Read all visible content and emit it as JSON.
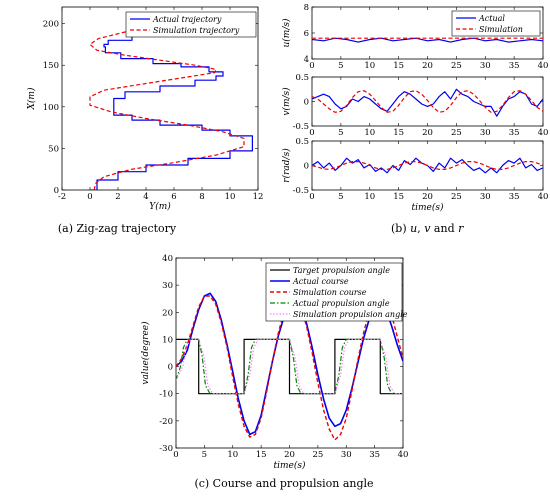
{
  "captions": {
    "a": "(a)  Zig-zag trajectory",
    "b_prefix": "(b)  ",
    "b_u": "u",
    "b_sep1": ", ",
    "b_v": "v",
    "b_and": " and ",
    "b_r": "r",
    "c": "(c)  Course and propulsion angle"
  },
  "colors": {
    "actual": "#0000ee",
    "simulation": "#ee0000",
    "target": "#000000",
    "actual_prop": "#008800",
    "sim_prop": "#ff77ff"
  },
  "chart_data": [
    {
      "id": "a",
      "type": "line",
      "xlabel": "Y(m)",
      "ylabel": "X(m)",
      "xlim": [
        -2,
        12
      ],
      "ylim": [
        0,
        220
      ],
      "xticks": [
        "-2",
        "0",
        "2",
        "4",
        "6",
        "8",
        "10",
        "12"
      ],
      "yticks": [
        "0",
        "50",
        "100",
        "150",
        "200"
      ],
      "legend": "top-right",
      "series": [
        {
          "name": "Actual trajectory",
          "style": "solid",
          "color": "#0000ee",
          "step": true,
          "x": [
            0,
            0.5,
            2,
            4,
            7,
            10,
            11.6,
            11.6,
            10,
            8,
            5,
            3,
            1.7,
            1.7,
            2.5,
            5,
            7.5,
            9,
            9.5,
            8.5,
            6.5,
            4.5,
            2.2,
            1.1,
            1,
            1.3,
            3,
            5,
            8,
            8.3
          ],
          "y": [
            0,
            12,
            22,
            30,
            38,
            47,
            55,
            65,
            72,
            78,
            84,
            90,
            98,
            110,
            118,
            125,
            132,
            137,
            142,
            148,
            152,
            158,
            165,
            172,
            175,
            180,
            190,
            198,
            205,
            208
          ]
        },
        {
          "name": "Simulation trajectory",
          "style": "dashed",
          "color": "#ee0000",
          "x": [
            0.3,
            0.4,
            1,
            3,
            6,
            9,
            11,
            11,
            9.5,
            7,
            4,
            1.5,
            0,
            0,
            1,
            4,
            7,
            8.9,
            9,
            7.5,
            5,
            2.5,
            0.5,
            0,
            0.6,
            2.5,
            5,
            7.5,
            8.9
          ],
          "y": [
            0,
            8,
            16,
            25,
            33,
            42,
            52,
            62,
            70,
            78,
            86,
            94,
            102,
            112,
            120,
            128,
            136,
            141,
            145,
            150,
            156,
            162,
            168,
            175,
            182,
            190,
            196,
            202,
            207
          ]
        }
      ]
    },
    {
      "id": "b1",
      "type": "line",
      "ylabel": "u(m/s)",
      "xlim": [
        0,
        40
      ],
      "ylim": [
        4,
        8
      ],
      "xticks": [
        "0",
        "5",
        "10",
        "15",
        "20",
        "25",
        "30",
        "35",
        "40"
      ],
      "yticks": [
        "4",
        "6",
        "8"
      ],
      "legend": "top-right",
      "series": [
        {
          "name": "Actual",
          "style": "solid",
          "color": "#0000ee",
          "x": [
            0,
            2,
            4,
            6,
            8,
            10,
            12,
            14,
            16,
            18,
            20,
            22,
            24,
            26,
            28,
            30,
            32,
            34,
            36,
            38,
            40
          ],
          "y": [
            5.5,
            5.4,
            5.6,
            5.5,
            5.3,
            5.5,
            5.6,
            5.4,
            5.5,
            5.6,
            5.4,
            5.5,
            5.3,
            5.5,
            5.6,
            5.4,
            5.5,
            5.3,
            5.4,
            5.5,
            5.4
          ]
        },
        {
          "name": "Simulation",
          "style": "dashed",
          "color": "#ee0000",
          "x": [
            0,
            5,
            10,
            15,
            20,
            25,
            30,
            35,
            40
          ],
          "y": [
            5.6,
            5.6,
            5.6,
            5.6,
            5.6,
            5.6,
            5.6,
            5.6,
            5.6
          ]
        }
      ]
    },
    {
      "id": "b2",
      "type": "line",
      "ylabel": "v(m/s)",
      "xlim": [
        0,
        40
      ],
      "ylim": [
        -0.5,
        0.5
      ],
      "xticks": [
        "0",
        "5",
        "10",
        "15",
        "20",
        "25",
        "30",
        "35",
        "40"
      ],
      "yticks": [
        "-0.5",
        "0",
        "0.5"
      ],
      "series": [
        {
          "name": "Actual",
          "style": "solid",
          "color": "#0000ee",
          "x": [
            0,
            1,
            2,
            3,
            4,
            5,
            6,
            7,
            8,
            9,
            10,
            11,
            12,
            13,
            14,
            15,
            16,
            17,
            18,
            19,
            20,
            21,
            22,
            23,
            24,
            25,
            26,
            27,
            28,
            29,
            30,
            31,
            32,
            33,
            34,
            35,
            36,
            37,
            38,
            39,
            40
          ],
          "y": [
            0.05,
            0.1,
            0.15,
            0.1,
            -0.05,
            -0.15,
            -0.1,
            0.05,
            0.0,
            0.1,
            0.05,
            -0.05,
            -0.15,
            -0.2,
            -0.05,
            0.1,
            0.2,
            0.15,
            0.05,
            -0.05,
            -0.1,
            -0.05,
            0.1,
            0.2,
            0.05,
            0.25,
            0.15,
            0.1,
            0.0,
            -0.05,
            -0.1,
            -0.1,
            -0.3,
            -0.1,
            0.05,
            0.1,
            0.2,
            0.15,
            -0.05,
            -0.1,
            0.05
          ]
        },
        {
          "name": "Simulation",
          "style": "dashed",
          "color": "#ee0000",
          "x": [
            0,
            1,
            2,
            3,
            4,
            5,
            6,
            7,
            8,
            9,
            10,
            11,
            12,
            13,
            14,
            15,
            16,
            17,
            18,
            19,
            20,
            21,
            22,
            23,
            24,
            25,
            26,
            27,
            28,
            29,
            30,
            31,
            32,
            33,
            34,
            35,
            36,
            37,
            38,
            39,
            40
          ],
          "y": [
            0.1,
            0.05,
            -0.05,
            -0.15,
            -0.22,
            -0.2,
            -0.08,
            0.08,
            0.2,
            0.22,
            0.15,
            0.02,
            -0.12,
            -0.22,
            -0.2,
            -0.08,
            0.08,
            0.2,
            0.22,
            0.15,
            0.02,
            -0.12,
            -0.22,
            -0.2,
            -0.08,
            0.08,
            0.2,
            0.22,
            0.15,
            0.02,
            -0.12,
            -0.22,
            -0.2,
            -0.08,
            0.08,
            0.2,
            0.22,
            0.15,
            0.02,
            -0.12,
            -0.2
          ]
        }
      ]
    },
    {
      "id": "b3",
      "type": "line",
      "xlabel": "time(s)",
      "ylabel": "r(rad/s)",
      "xlim": [
        0,
        40
      ],
      "ylim": [
        -0.5,
        0.5
      ],
      "xticks": [
        "0",
        "5",
        "10",
        "15",
        "20",
        "25",
        "30",
        "35",
        "40"
      ],
      "yticks": [
        "-0.5",
        "0",
        "0.5"
      ],
      "series": [
        {
          "name": "Actual",
          "style": "solid",
          "color": "#0000ee",
          "x": [
            0,
            1,
            2,
            3,
            4,
            5,
            6,
            7,
            8,
            9,
            10,
            11,
            12,
            13,
            14,
            15,
            16,
            17,
            18,
            19,
            20,
            21,
            22,
            23,
            24,
            25,
            26,
            27,
            28,
            29,
            30,
            31,
            32,
            33,
            34,
            35,
            36,
            37,
            38,
            39,
            40
          ],
          "y": [
            0.0,
            0.08,
            -0.05,
            0.05,
            -0.1,
            0.0,
            0.15,
            0.05,
            0.12,
            -0.05,
            0.02,
            -0.12,
            -0.05,
            -0.15,
            0.0,
            -0.1,
            0.1,
            0.02,
            0.15,
            0.05,
            0.0,
            -0.12,
            0.05,
            -0.05,
            0.15,
            0.05,
            0.12,
            0.0,
            -0.1,
            -0.05,
            -0.15,
            -0.05,
            -0.15,
            0.0,
            0.1,
            0.05,
            0.15,
            -0.05,
            0.02,
            -0.1,
            -0.05
          ]
        },
        {
          "name": "Simulation",
          "style": "dashed",
          "color": "#ee0000",
          "x": [
            0,
            1,
            2,
            3,
            4,
            5,
            6,
            7,
            8,
            9,
            10,
            11,
            12,
            13,
            14,
            15,
            16,
            17,
            18,
            19,
            20,
            21,
            22,
            23,
            24,
            25,
            26,
            27,
            28,
            29,
            30,
            31,
            32,
            33,
            34,
            35,
            36,
            37,
            38,
            39,
            40
          ],
          "y": [
            0.0,
            -0.03,
            -0.07,
            -0.08,
            -0.05,
            0.0,
            0.05,
            0.08,
            0.08,
            0.05,
            0.0,
            -0.05,
            -0.08,
            -0.08,
            -0.05,
            0.0,
            0.05,
            0.08,
            0.08,
            0.05,
            0.0,
            -0.05,
            -0.08,
            -0.08,
            -0.05,
            0.0,
            0.05,
            0.08,
            0.08,
            0.05,
            0.0,
            -0.05,
            -0.08,
            -0.08,
            -0.05,
            0.0,
            0.05,
            0.08,
            0.08,
            0.05,
            0.0
          ]
        }
      ]
    },
    {
      "id": "c",
      "type": "line",
      "xlabel": "time(s)",
      "ylabel": "value(degree)",
      "xlim": [
        0,
        40
      ],
      "ylim": [
        -30,
        40
      ],
      "xticks": [
        "0",
        "5",
        "10",
        "15",
        "20",
        "25",
        "30",
        "35",
        "40"
      ],
      "yticks": [
        "-30",
        "-20",
        "-10",
        "0",
        "10",
        "20",
        "30",
        "40"
      ],
      "legend": "top-right",
      "series": [
        {
          "name": "Target propulsion angle",
          "style": "solid",
          "color": "#000000",
          "width": 1.2,
          "x": [
            0,
            4,
            4,
            12,
            12,
            20,
            20,
            28,
            28,
            36,
            36,
            40
          ],
          "y": [
            10,
            10,
            -10,
            -10,
            10,
            10,
            -10,
            -10,
            10,
            10,
            -10,
            -10
          ]
        },
        {
          "name": "Actual course",
          "style": "solid",
          "color": "#0000ee",
          "width": 1.6,
          "x": [
            0,
            1,
            2,
            3,
            4,
            5,
            6,
            7,
            8,
            9,
            10,
            11,
            12,
            13,
            14,
            15,
            16,
            17,
            18,
            19,
            20,
            21,
            22,
            23,
            24,
            25,
            26,
            27,
            28,
            29,
            30,
            31,
            32,
            33,
            34,
            35,
            36,
            37,
            38,
            39,
            40
          ],
          "y": [
            0,
            2,
            6,
            14,
            21,
            26,
            27,
            24,
            17,
            8,
            -2,
            -12,
            -20,
            -25,
            -24,
            -18,
            -8,
            2,
            11,
            18,
            22,
            23.5,
            22,
            16,
            7,
            -3,
            -12,
            -19,
            -22,
            -21,
            -16,
            -8,
            1,
            10,
            17,
            21,
            23,
            21,
            15,
            8,
            2
          ]
        },
        {
          "name": "Simulation course",
          "style": "dashed",
          "color": "#ee0000",
          "width": 1.4,
          "x": [
            0,
            1,
            2,
            3,
            4,
            5,
            6,
            7,
            8,
            9,
            10,
            11,
            12,
            13,
            14,
            15,
            16,
            17,
            18,
            19,
            20,
            21,
            22,
            23,
            24,
            25,
            26,
            27,
            28,
            29,
            30,
            31,
            32,
            33,
            34,
            35,
            36,
            37,
            38,
            39,
            40
          ],
          "y": [
            0,
            3,
            8,
            15,
            22,
            26,
            26,
            23,
            16,
            7,
            -4,
            -14,
            -22,
            -26,
            -25,
            -19,
            -9,
            2,
            12,
            20,
            24,
            24.5,
            22,
            15,
            5,
            -6,
            -16,
            -23,
            -27,
            -25,
            -19,
            -9,
            2,
            12,
            20,
            24,
            26,
            25,
            19,
            11,
            3
          ]
        },
        {
          "name": "Actual propulsion angle",
          "style": "dashdot",
          "color": "#008800",
          "width": 1.2,
          "x": [
            0,
            0.8,
            1.3,
            2,
            4,
            4.6,
            5.2,
            6,
            12,
            12.7,
            13.3,
            14,
            20,
            20.7,
            21.3,
            22,
            28,
            28.7,
            29.3,
            30,
            36,
            36.7,
            37.3,
            38,
            40
          ],
          "y": [
            -5,
            0,
            7,
            10,
            10,
            4,
            -7,
            -10,
            -10,
            -3,
            7,
            10,
            10,
            3,
            -7,
            -10,
            -10,
            -3,
            7,
            10,
            10,
            3,
            -7,
            -10,
            -10
          ]
        },
        {
          "name": "Simulation propulsion angle",
          "style": "dotted",
          "color": "#ff77ff",
          "width": 1.2,
          "x": [
            0,
            1.2,
            1.8,
            2.6,
            4,
            4.9,
            5.6,
            6.5,
            12,
            13,
            13.7,
            14.5,
            20,
            21,
            21.7,
            22.5,
            28,
            29,
            29.7,
            30.5,
            36,
            37,
            37.7,
            38.5,
            40
          ],
          "y": [
            -5,
            0,
            7,
            10,
            10,
            4,
            -7,
            -10,
            -10,
            -3,
            7,
            10,
            10,
            3,
            -7,
            -10,
            -10,
            -3,
            7,
            10,
            10,
            3,
            -7,
            -10,
            -10
          ]
        }
      ]
    }
  ]
}
